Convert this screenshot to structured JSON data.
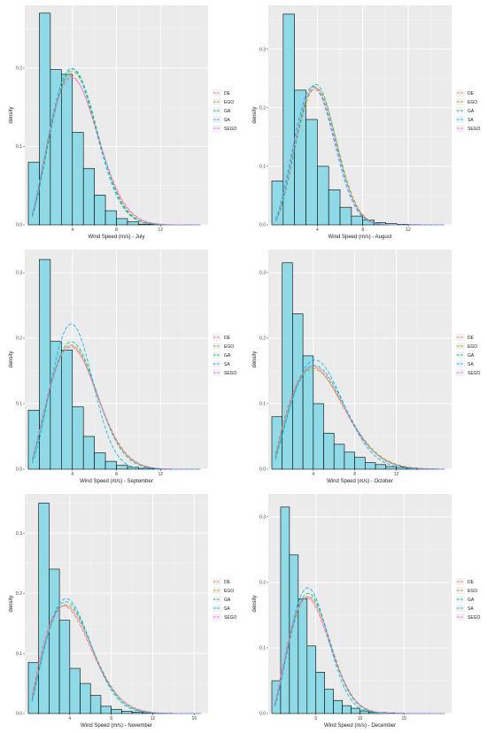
{
  "legend": {
    "position": "right",
    "entries": [
      {
        "name": "DE",
        "color": "#F8766D"
      },
      {
        "name": "EGO",
        "color": "#A3A500"
      },
      {
        "name": "GA",
        "color": "#00BF7D"
      },
      {
        "name": "SA",
        "color": "#00B0F6"
      },
      {
        "name": "SEGO",
        "color": "#E76BF3"
      }
    ]
  },
  "chart_data": [
    {
      "type": "bar",
      "xlabel": "Wind Speed (m/s) - July",
      "ylabel": "density",
      "xlim": [
        0,
        16
      ],
      "ylim": [
        0,
        0.28
      ],
      "x_ticks": [
        4,
        8,
        12
      ],
      "y_ticks": [
        0.0,
        0.1,
        0.2
      ],
      "y_tick_labels": [
        "0.0",
        "0.1",
        "0.2"
      ],
      "grid": true,
      "bin_edges": [
        0,
        1,
        2,
        3,
        4,
        5,
        6,
        7,
        8,
        9,
        10,
        11,
        12,
        13,
        14,
        15
      ],
      "densities": [
        0.08,
        0.27,
        0.198,
        0.192,
        0.118,
        0.072,
        0.038,
        0.018,
        0.008,
        0.004,
        0.001,
        0.0005,
        0.0002,
        0.0001,
        0.0001
      ],
      "curve_params": {
        "DE": [
          2.3,
          5.0
        ],
        "EGO": [
          2.4,
          5.0
        ],
        "GA": [
          2.45,
          5.0
        ],
        "SA": [
          2.4,
          4.9
        ],
        "SEGO": [
          2.3,
          5.05
        ]
      }
    },
    {
      "type": "bar",
      "xlabel": "Wind Speed (m/s) - August",
      "ylabel": "density",
      "xlim": [
        0,
        15.5
      ],
      "ylim": [
        0,
        0.375
      ],
      "x_ticks": [
        4,
        8,
        12
      ],
      "y_ticks": [
        0.0,
        0.1,
        0.2,
        0.3
      ],
      "y_tick_labels": [
        "0.0",
        "0.1",
        "0.2",
        "0.3"
      ],
      "grid": true,
      "bin_edges": [
        0,
        1,
        2,
        3,
        4,
        5,
        6,
        7,
        8,
        9,
        10,
        11,
        12,
        13,
        14
      ],
      "densities": [
        0.075,
        0.36,
        0.23,
        0.18,
        0.1,
        0.06,
        0.03,
        0.015,
        0.008,
        0.004,
        0.002,
        0.001,
        0.0005,
        0.0002
      ],
      "curve_params": {
        "DE": [
          2.6,
          4.5
        ],
        "EGO": [
          2.7,
          4.6
        ],
        "GA": [
          2.75,
          4.55
        ],
        "SA": [
          2.6,
          4.4
        ],
        "SEGO": [
          2.65,
          4.5
        ]
      }
    },
    {
      "type": "bar",
      "xlabel": "Wind Speed (m/s) - September",
      "ylabel": "density",
      "xlim": [
        0,
        16
      ],
      "ylim": [
        0,
        0.335
      ],
      "x_ticks": [
        4,
        8,
        12
      ],
      "y_ticks": [
        0.0,
        0.1,
        0.2,
        0.3
      ],
      "y_tick_labels": [
        "0.0",
        "0.1",
        "0.2",
        "0.3"
      ],
      "grid": true,
      "bin_edges": [
        0,
        1,
        2,
        3,
        4,
        5,
        6,
        7,
        8,
        9,
        10,
        11,
        12,
        13,
        14,
        15
      ],
      "densities": [
        0.09,
        0.32,
        0.195,
        0.182,
        0.095,
        0.05,
        0.025,
        0.012,
        0.006,
        0.003,
        0.0015,
        0.0008,
        0.0004,
        0.0002,
        0.0001
      ],
      "curve_params": {
        "DE": [
          2.25,
          4.95
        ],
        "EGO": [
          2.3,
          5.0
        ],
        "GA": [
          2.35,
          4.95
        ],
        "SA": [
          2.6,
          4.7
        ],
        "SEGO": [
          2.25,
          5.0
        ]
      }
    },
    {
      "type": "bar",
      "xlabel": "Wind Speed (m/s) - October",
      "ylabel": "density",
      "xlim": [
        0,
        17
      ],
      "ylim": [
        0,
        0.335
      ],
      "x_ticks": [
        4,
        8,
        12
      ],
      "y_ticks": [
        0.0,
        0.1,
        0.2,
        0.3
      ],
      "y_tick_labels": [
        "0.0",
        "0.1",
        "0.2",
        "0.3"
      ],
      "grid": true,
      "bin_edges": [
        0,
        1,
        2,
        3,
        4,
        5,
        6,
        7,
        8,
        9,
        10,
        11,
        12,
        13,
        14,
        15,
        16
      ],
      "densities": [
        0.08,
        0.315,
        0.237,
        0.173,
        0.1,
        0.055,
        0.038,
        0.026,
        0.018,
        0.01,
        0.007,
        0.004,
        0.003,
        0.002,
        0.001,
        0.0005
      ],
      "curve_params": {
        "DE": [
          2.0,
          5.5
        ],
        "EGO": [
          2.0,
          5.6
        ],
        "GA": [
          2.1,
          5.6
        ],
        "SA": [
          2.2,
          5.5
        ],
        "SEGO": [
          2.05,
          5.55
        ]
      }
    },
    {
      "type": "bar",
      "xlabel": "Wind Speed (m/s) - November",
      "ylabel": "density",
      "xlim": [
        0,
        17
      ],
      "ylim": [
        0,
        0.365
      ],
      "x_ticks": [
        4,
        8,
        12,
        16
      ],
      "y_ticks": [
        0.0,
        0.1,
        0.2,
        0.3
      ],
      "y_tick_labels": [
        "0.0",
        "0.1",
        "0.2",
        "0.3"
      ],
      "grid": true,
      "bin_edges": [
        0,
        1,
        2,
        3,
        4,
        5,
        6,
        7,
        8,
        9,
        10,
        11,
        12,
        13,
        14,
        15,
        16
      ],
      "densities": [
        0.085,
        0.35,
        0.24,
        0.155,
        0.075,
        0.05,
        0.03,
        0.012,
        0.007,
        0.004,
        0.0025,
        0.0015,
        0.001,
        0.0005,
        0.0003,
        0.0002
      ],
      "curve_params": {
        "DE": [
          2.0,
          4.8
        ],
        "EGO": [
          2.1,
          4.9
        ],
        "GA": [
          2.15,
          4.85
        ],
        "SA": [
          2.2,
          4.8
        ],
        "SEGO": [
          2.05,
          4.85
        ]
      }
    },
    {
      "type": "bar",
      "xlabel": "Wind Speed (m/s) - December",
      "ylabel": "density",
      "xlim": [
        0,
        20
      ],
      "ylim": [
        0,
        0.335
      ],
      "x_ticks": [
        5,
        10,
        15
      ],
      "y_ticks": [
        0.0,
        0.1,
        0.2,
        0.3
      ],
      "y_tick_labels": [
        "0.0",
        "0.1",
        "0.2",
        "0.3"
      ],
      "grid": true,
      "bin_edges": [
        0,
        1,
        2,
        3,
        4,
        5,
        6,
        7,
        8,
        9,
        10,
        11,
        12,
        13,
        14,
        15,
        16,
        17
      ],
      "densities": [
        0.05,
        0.315,
        0.242,
        0.175,
        0.103,
        0.063,
        0.037,
        0.02,
        0.012,
        0.008,
        0.004,
        0.002,
        0.0015,
        0.001,
        0.0005,
        0.0003,
        0.0002
      ],
      "curve_params": {
        "DE": [
          2.2,
          5.2
        ],
        "EGO": [
          2.3,
          5.3
        ],
        "GA": [
          2.35,
          5.25
        ],
        "SA": [
          2.4,
          5.1
        ],
        "SEGO": [
          2.25,
          5.25
        ]
      }
    }
  ]
}
